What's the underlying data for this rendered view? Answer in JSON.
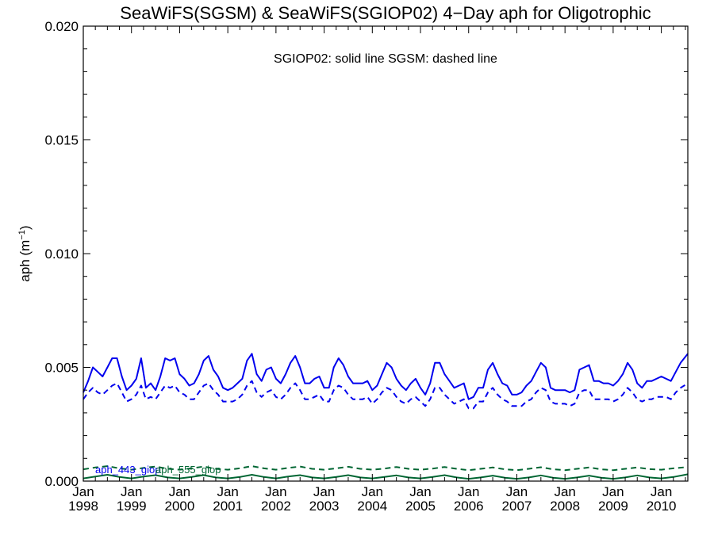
{
  "chart_data": {
    "type": "line",
    "title": "SeaWiFS(SGSM) & SeaWiFS(SGIOP02) 4−Day aph for Oligotrophic",
    "ylabel": "aph (m",
    "ylabel_sup": "−1",
    "ylabel_close": ")",
    "annotation": "SGIOP02: solid line   SGSM: dashed line",
    "xlim": [
      1998.0,
      2010.55
    ],
    "ylim": [
      0.0,
      0.02
    ],
    "grid": false,
    "x_ticks": [
      {
        "value": 1998,
        "month": "Jan",
        "year": "1998"
      },
      {
        "value": 1999,
        "month": "Jan",
        "year": "1999"
      },
      {
        "value": 2000,
        "month": "Jan",
        "year": "2000"
      },
      {
        "value": 2001,
        "month": "Jan",
        "year": "2001"
      },
      {
        "value": 2002,
        "month": "Jan",
        "year": "2002"
      },
      {
        "value": 2003,
        "month": "Jan",
        "year": "2003"
      },
      {
        "value": 2004,
        "month": "Jan",
        "year": "2004"
      },
      {
        "value": 2005,
        "month": "Jan",
        "year": "2005"
      },
      {
        "value": 2006,
        "month": "Jan",
        "year": "2006"
      },
      {
        "value": 2007,
        "month": "Jan",
        "year": "2007"
      },
      {
        "value": 2008,
        "month": "Jan",
        "year": "2008"
      },
      {
        "value": 2009,
        "month": "Jan",
        "year": "2009"
      },
      {
        "value": 2010,
        "month": "Jan",
        "year": "2010"
      }
    ],
    "y_ticks": [
      {
        "value": 0.0,
        "label": "0.000"
      },
      {
        "value": 0.005,
        "label": "0.005"
      },
      {
        "value": 0.01,
        "label": "0.010"
      },
      {
        "value": 0.015,
        "label": "0.015"
      },
      {
        "value": 0.02,
        "label": "0.020"
      }
    ],
    "legend": [
      {
        "text": "aph_443_giop",
        "color": "#0000ee"
      },
      {
        "text": "aph_555_giop",
        "color": "#006633"
      }
    ],
    "series": [
      {
        "name": "aph_443_giop",
        "color": "#0000ee",
        "dash": false,
        "x": [
          1998.0,
          1998.1,
          1998.2,
          1998.3,
          1998.4,
          1998.5,
          1998.6,
          1998.7,
          1998.8,
          1998.9,
          1999.0,
          1999.1,
          1999.2,
          1999.3,
          1999.4,
          1999.5,
          1999.6,
          1999.7,
          1999.8,
          1999.9,
          2000.0,
          2000.1,
          2000.2,
          2000.3,
          2000.4,
          2000.5,
          2000.6,
          2000.7,
          2000.8,
          2000.9,
          2001.0,
          2001.1,
          2001.2,
          2001.3,
          2001.4,
          2001.5,
          2001.6,
          2001.7,
          2001.8,
          2001.9,
          2002.0,
          2002.1,
          2002.2,
          2002.3,
          2002.4,
          2002.5,
          2002.6,
          2002.7,
          2002.8,
          2002.9,
          2003.0,
          2003.1,
          2003.2,
          2003.3,
          2003.4,
          2003.5,
          2003.6,
          2003.7,
          2003.8,
          2003.9,
          2004.0,
          2004.1,
          2004.2,
          2004.3,
          2004.4,
          2004.5,
          2004.6,
          2004.7,
          2004.8,
          2004.9,
          2005.0,
          2005.1,
          2005.2,
          2005.3,
          2005.4,
          2005.5,
          2005.6,
          2005.7,
          2005.8,
          2005.9,
          2006.0,
          2006.1,
          2006.2,
          2006.3,
          2006.4,
          2006.5,
          2006.6,
          2006.7,
          2006.8,
          2006.9,
          2007.0,
          2007.1,
          2007.2,
          2007.3,
          2007.4,
          2007.5,
          2007.6,
          2007.7,
          2007.8,
          2007.9,
          2008.0,
          2008.1,
          2008.2,
          2008.3,
          2008.4,
          2008.5,
          2008.6,
          2008.7,
          2008.8,
          2008.9,
          2009.0,
          2009.1,
          2009.2,
          2009.3,
          2009.4,
          2009.5,
          2009.6,
          2009.7,
          2009.8,
          2009.9,
          2010.0,
          2010.1,
          2010.2,
          2010.3,
          2010.4,
          2010.55
        ],
        "y": [
          0.0039,
          0.0044,
          0.005,
          0.0048,
          0.0046,
          0.005,
          0.0054,
          0.0054,
          0.0046,
          0.004,
          0.0042,
          0.0045,
          0.0054,
          0.0041,
          0.0043,
          0.004,
          0.0046,
          0.0054,
          0.0053,
          0.0054,
          0.0047,
          0.0045,
          0.0042,
          0.0043,
          0.0047,
          0.0053,
          0.0055,
          0.0049,
          0.0046,
          0.0041,
          0.004,
          0.0041,
          0.0043,
          0.0045,
          0.0053,
          0.0056,
          0.0047,
          0.0044,
          0.0049,
          0.005,
          0.0045,
          0.0043,
          0.0047,
          0.0052,
          0.0055,
          0.005,
          0.0043,
          0.0043,
          0.0045,
          0.0046,
          0.0041,
          0.0041,
          0.005,
          0.0054,
          0.0051,
          0.0046,
          0.0043,
          0.0043,
          0.0043,
          0.0044,
          0.004,
          0.0042,
          0.0047,
          0.0052,
          0.005,
          0.0045,
          0.0042,
          0.004,
          0.0043,
          0.0045,
          0.0041,
          0.0038,
          0.0043,
          0.0052,
          0.0052,
          0.0047,
          0.0044,
          0.0041,
          0.0042,
          0.0043,
          0.0036,
          0.0037,
          0.0041,
          0.0041,
          0.0049,
          0.0052,
          0.0047,
          0.0043,
          0.0042,
          0.0038,
          0.0038,
          0.0039,
          0.0042,
          0.0044,
          0.0048,
          0.0052,
          0.005,
          0.0041,
          0.004,
          0.004,
          0.004,
          0.0039,
          0.004,
          0.0049,
          0.005,
          0.0051,
          0.0044,
          0.0044,
          0.0043,
          0.0043,
          0.0042,
          0.0044,
          0.0047,
          0.0052,
          0.0049,
          0.0043,
          0.0041,
          0.0044,
          0.0044,
          0.0045,
          0.0046,
          0.0045,
          0.0044,
          0.0048,
          0.0052,
          0.0056
        ]
      },
      {
        "name": "aph_443_gsm",
        "color": "#0000ee",
        "dash": true,
        "x": [
          1998.0,
          1998.1,
          1998.2,
          1998.3,
          1998.4,
          1998.5,
          1998.6,
          1998.7,
          1998.8,
          1998.9,
          1999.0,
          1999.1,
          1999.2,
          1999.3,
          1999.4,
          1999.5,
          1999.6,
          1999.7,
          1999.8,
          1999.9,
          2000.0,
          2000.1,
          2000.2,
          2000.3,
          2000.4,
          2000.5,
          2000.6,
          2000.7,
          2000.8,
          2000.9,
          2001.0,
          2001.1,
          2001.2,
          2001.3,
          2001.4,
          2001.5,
          2001.6,
          2001.7,
          2001.8,
          2001.9,
          2002.0,
          2002.1,
          2002.2,
          2002.3,
          2002.4,
          2002.5,
          2002.6,
          2002.7,
          2002.8,
          2002.9,
          2003.0,
          2003.1,
          2003.2,
          2003.3,
          2003.4,
          2003.5,
          2003.6,
          2003.7,
          2003.8,
          2003.9,
          2004.0,
          2004.1,
          2004.2,
          2004.3,
          2004.4,
          2004.5,
          2004.6,
          2004.7,
          2004.8,
          2004.9,
          2005.0,
          2005.1,
          2005.2,
          2005.3,
          2005.4,
          2005.5,
          2005.6,
          2005.7,
          2005.8,
          2005.9,
          2006.0,
          2006.1,
          2006.2,
          2006.3,
          2006.4,
          2006.5,
          2006.6,
          2006.7,
          2006.8,
          2006.9,
          2007.0,
          2007.1,
          2007.2,
          2007.3,
          2007.4,
          2007.5,
          2007.6,
          2007.7,
          2007.8,
          2007.9,
          2008.0,
          2008.1,
          2008.2,
          2008.3,
          2008.4,
          2008.5,
          2008.6,
          2008.7,
          2008.8,
          2008.9,
          2009.0,
          2009.1,
          2009.2,
          2009.3,
          2009.4,
          2009.5,
          2009.6,
          2009.7,
          2009.8,
          2009.9,
          2010.0,
          2010.1,
          2010.2,
          2010.3,
          2010.4,
          2010.55
        ],
        "y": [
          0.0036,
          0.0039,
          0.0041,
          0.0039,
          0.0038,
          0.004,
          0.0042,
          0.0043,
          0.0039,
          0.0035,
          0.0036,
          0.0038,
          0.0042,
          0.0036,
          0.0037,
          0.0036,
          0.0039,
          0.0042,
          0.0041,
          0.0042,
          0.0039,
          0.0038,
          0.0036,
          0.0036,
          0.0039,
          0.0042,
          0.0043,
          0.004,
          0.0038,
          0.0035,
          0.0035,
          0.0035,
          0.0036,
          0.0038,
          0.0042,
          0.0044,
          0.0039,
          0.0037,
          0.0039,
          0.004,
          0.0037,
          0.0036,
          0.0038,
          0.0041,
          0.0043,
          0.004,
          0.0036,
          0.0036,
          0.0037,
          0.0038,
          0.0035,
          0.0035,
          0.004,
          0.0042,
          0.0041,
          0.0038,
          0.0036,
          0.0036,
          0.0036,
          0.0037,
          0.0034,
          0.0036,
          0.0039,
          0.0041,
          0.004,
          0.0037,
          0.0035,
          0.0034,
          0.0036,
          0.0037,
          0.0035,
          0.0033,
          0.0036,
          0.0041,
          0.0041,
          0.0038,
          0.0036,
          0.0034,
          0.0035,
          0.0036,
          0.0032,
          0.0032,
          0.0035,
          0.0035,
          0.0039,
          0.0041,
          0.0038,
          0.0036,
          0.0035,
          0.0033,
          0.0033,
          0.0033,
          0.0035,
          0.0036,
          0.0039,
          0.0041,
          0.004,
          0.0035,
          0.0034,
          0.0034,
          0.0034,
          0.0033,
          0.0034,
          0.0039,
          0.004,
          0.004,
          0.0036,
          0.0036,
          0.0036,
          0.0036,
          0.0035,
          0.0036,
          0.0038,
          0.0041,
          0.0039,
          0.0036,
          0.0035,
          0.0036,
          0.0036,
          0.0037,
          0.0037,
          0.0037,
          0.0036,
          0.0039,
          0.0041,
          0.0043
        ]
      },
      {
        "name": "aph_555_giop",
        "color": "#006633",
        "dash": false,
        "x": [
          1998.0,
          1998.25,
          1998.5,
          1998.75,
          1999.0,
          1999.25,
          1999.5,
          1999.75,
          2000.0,
          2000.25,
          2000.5,
          2000.75,
          2001.0,
          2001.25,
          2001.5,
          2001.75,
          2002.0,
          2002.25,
          2002.5,
          2002.75,
          2003.0,
          2003.25,
          2003.5,
          2003.75,
          2004.0,
          2004.25,
          2004.5,
          2004.75,
          2005.0,
          2005.25,
          2005.5,
          2005.75,
          2006.0,
          2006.25,
          2006.5,
          2006.75,
          2007.0,
          2007.25,
          2007.5,
          2007.75,
          2008.0,
          2008.25,
          2008.5,
          2008.75,
          2009.0,
          2009.25,
          2009.5,
          2009.75,
          2010.0,
          2010.25,
          2010.55
        ],
        "y": [
          0.00012,
          0.0002,
          0.00028,
          0.00018,
          0.00012,
          0.0002,
          0.00026,
          0.00016,
          0.00012,
          0.00018,
          0.00026,
          0.00016,
          0.00012,
          0.00018,
          0.00028,
          0.00018,
          0.00012,
          0.0002,
          0.00026,
          0.00016,
          0.00012,
          0.00018,
          0.00026,
          0.00016,
          0.00012,
          0.00018,
          0.00025,
          0.00016,
          0.00012,
          0.00018,
          0.00026,
          0.00016,
          0.0001,
          0.00016,
          0.00024,
          0.00015,
          0.0001,
          0.00016,
          0.00025,
          0.00015,
          0.0001,
          0.00016,
          0.00024,
          0.00015,
          0.0001,
          0.00016,
          0.00025,
          0.00016,
          0.00012,
          0.00018,
          0.0003
        ]
      },
      {
        "name": "aph_555_gsm",
        "color": "#006633",
        "dash": true,
        "x": [
          1998.0,
          1998.25,
          1998.5,
          1998.75,
          1999.0,
          1999.25,
          1999.5,
          1999.75,
          2000.0,
          2000.25,
          2000.5,
          2000.75,
          2001.0,
          2001.25,
          2001.5,
          2001.75,
          2002.0,
          2002.25,
          2002.5,
          2002.75,
          2003.0,
          2003.25,
          2003.5,
          2003.75,
          2004.0,
          2004.25,
          2004.5,
          2004.75,
          2005.0,
          2005.25,
          2005.5,
          2005.75,
          2006.0,
          2006.25,
          2006.5,
          2006.75,
          2007.0,
          2007.25,
          2007.5,
          2007.75,
          2008.0,
          2008.25,
          2008.5,
          2008.75,
          2009.0,
          2009.25,
          2009.5,
          2009.75,
          2010.0,
          2010.25,
          2010.55
        ],
        "y": [
          0.00052,
          0.0006,
          0.00066,
          0.00056,
          0.0005,
          0.00058,
          0.00064,
          0.00054,
          0.0005,
          0.00056,
          0.00064,
          0.00054,
          0.0005,
          0.00056,
          0.00066,
          0.00056,
          0.0005,
          0.00058,
          0.00064,
          0.00054,
          0.0005,
          0.00056,
          0.00063,
          0.00054,
          0.0005,
          0.00055,
          0.00062,
          0.00054,
          0.0005,
          0.00055,
          0.00062,
          0.00054,
          0.00048,
          0.00054,
          0.0006,
          0.00052,
          0.00048,
          0.00054,
          0.00061,
          0.00052,
          0.00048,
          0.00054,
          0.0006,
          0.00052,
          0.00048,
          0.00054,
          0.0006,
          0.00053,
          0.0005,
          0.00056,
          0.00062
        ]
      }
    ]
  }
}
